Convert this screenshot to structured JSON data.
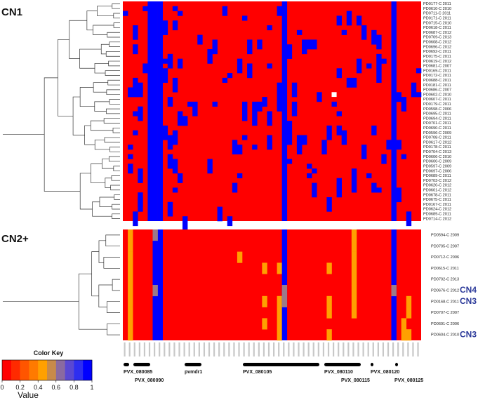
{
  "chart_data": {
    "type": "heatmap",
    "panels": [
      {
        "label": "CN1",
        "rows": [
          "PD0177-C 2011",
          "PD0610-C 2010",
          "PD0711-C 2011",
          "PD0171-C 2011",
          "PD0715-C 2010",
          "PD0618-C 2011",
          "PD0687-C 2012",
          "PD0709-C 2013",
          "PD0608-C 2012",
          "PD0696-C 2012",
          "PD0692-C 2011",
          "PD0175-C 2011",
          "PD0619-C 2012",
          "PD0681-C 2007",
          "PD0169-C 2011",
          "PD0172-C 2011",
          "PD0688-C 2011",
          "PD0181-C 2011",
          "PD0686-C 2007",
          "PD0602-C 2010",
          "PD0607-C 2011",
          "PD0179-C 2011",
          "PD0598-C 2006",
          "PD0695-C 2011",
          "PD0694-C 2011",
          "PD0701-C 2011",
          "PD0690-C 2011",
          "PD0596-C 2009",
          "PD0708-C 2011",
          "PD0617-C 2012",
          "PD0178-C 2011",
          "PD0704-C 2013",
          "PD0606-C 2010",
          "PD0600-C 2009",
          "PD0597-C 2009",
          "PD0697-C 2006",
          "PD0689-C 2011",
          "PD0703-C 2012",
          "PD0620-C 2012",
          "PD0601-C 2012",
          "PD0678-C 2011",
          "PD0675-C 2011",
          "PD0167-C 2011",
          "PD0624-C 2012",
          "PD0689-C 2011",
          "PD0714-C 2012"
        ]
      },
      {
        "label": "CN2+",
        "rows": [
          "PD0594-C 2009",
          "PD0705-C 2007",
          "PD0712-C 2006",
          "PD0615-C 2011",
          "PD0702-C 2013",
          "PD0676-C 2012",
          "PD0168-C 2011",
          "PD0707-C 2007",
          "PD0691-C 2006",
          "PD0604-C 2010"
        ],
        "annotations": [
          "",
          "",
          "",
          "",
          "",
          "CN4",
          "CN3",
          "",
          "",
          "CN3"
        ]
      }
    ],
    "genes": [
      "PVX_080085",
      "PVX_080090",
      "pvmdr1",
      "PVX_080105",
      "PVX_080110",
      "PVX_080115",
      "PVX_080120",
      "PVX_080125"
    ],
    "color_key": {
      "title": "Color Key",
      "xlabel": "Value",
      "ticks": [
        "0",
        "0.2",
        "0.4",
        "0.6",
        "0.8",
        "1"
      ],
      "colors": [
        "#ff0000",
        "#ff2a00",
        "#ff5500",
        "#ff7a00",
        "#ffa000",
        "#c88a4a",
        "#8a6aa0",
        "#5a48d2",
        "#2e2ef0",
        "#0000ff"
      ],
      "range": [
        0,
        1
      ]
    },
    "n_columns": 60,
    "cn1_blue_columns": [
      5,
      6,
      7,
      32,
      54
    ],
    "cn2_blue_columns": [
      6,
      7,
      32,
      54
    ],
    "cn2_orange_cells": [
      [
        0,
        1
      ],
      [
        1,
        1
      ],
      [
        2,
        1
      ],
      [
        3,
        1
      ],
      [
        4,
        1
      ],
      [
        5,
        1
      ],
      [
        6,
        1
      ],
      [
        7,
        1
      ],
      [
        8,
        1
      ],
      [
        9,
        1
      ],
      [
        2,
        23
      ],
      [
        3,
        28
      ],
      [
        3,
        31
      ],
      [
        6,
        28
      ],
      [
        6,
        31
      ],
      [
        7,
        31
      ],
      [
        8,
        28
      ],
      [
        8,
        31
      ],
      [
        9,
        31
      ],
      [
        0,
        46
      ],
      [
        1,
        46
      ],
      [
        2,
        46
      ],
      [
        3,
        46
      ],
      [
        4,
        46
      ],
      [
        5,
        46
      ],
      [
        6,
        46
      ],
      [
        7,
        46
      ],
      [
        3,
        41
      ],
      [
        6,
        41
      ],
      [
        7,
        41
      ],
      [
        9,
        41
      ],
      [
        6,
        57
      ],
      [
        7,
        57
      ],
      [
        8,
        56
      ],
      [
        9,
        56
      ],
      [
        9,
        57
      ]
    ],
    "cn2_grey_cells": [
      [
        5,
        6
      ],
      [
        5,
        32
      ],
      [
        5,
        54
      ],
      [
        6,
        32
      ],
      [
        0,
        6
      ]
    ]
  }
}
